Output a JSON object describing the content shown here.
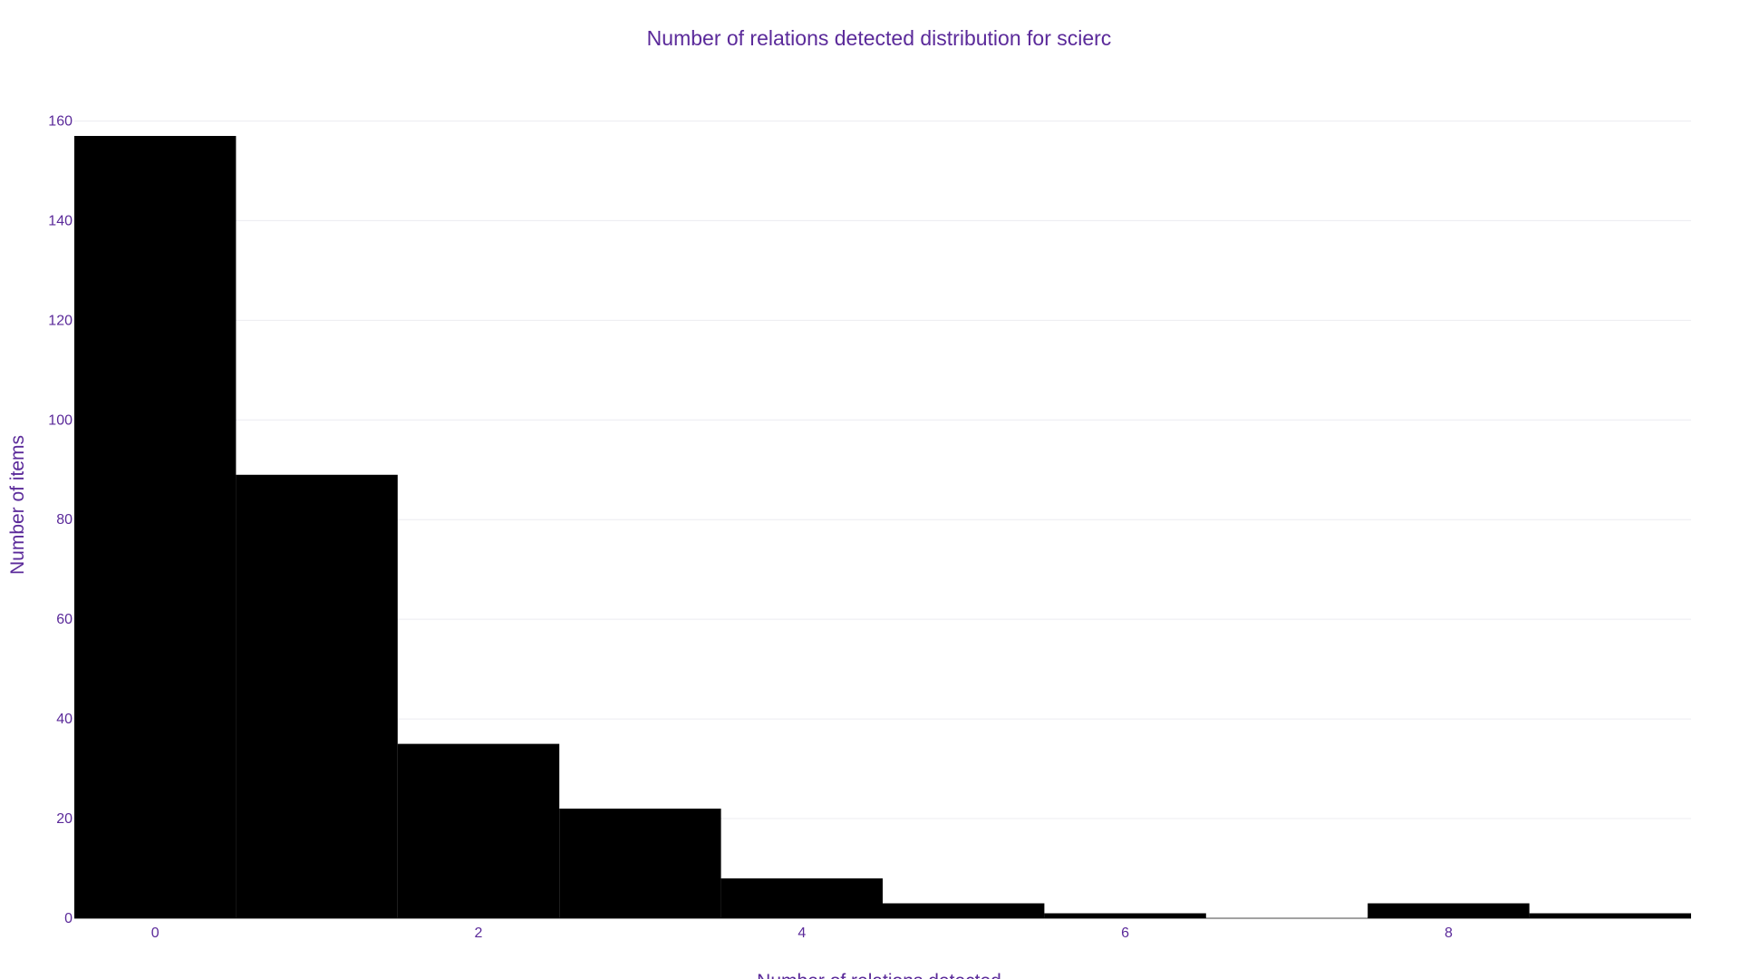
{
  "colors": {
    "text": "#5b2a9a",
    "bar": "#000000",
    "grid": "#ececf1",
    "background": "#ffffff"
  },
  "chart_data": {
    "type": "bar",
    "title": "Number of relations detected distribution for scierc",
    "xlabel": "Number of relations detected",
    "ylabel": "Number of items",
    "x": [
      0,
      1,
      2,
      3,
      4,
      5,
      6,
      7,
      8,
      9
    ],
    "values": [
      157,
      89,
      35,
      22,
      8,
      3,
      1,
      0,
      3,
      1
    ],
    "bin_width": 1,
    "xlim": [
      -0.5,
      9.5
    ],
    "ylim": [
      0,
      165
    ],
    "x_ticks": [
      "0",
      "2",
      "4",
      "6",
      "8"
    ],
    "y_ticks": [
      "0",
      "20",
      "40",
      "60",
      "80",
      "100",
      "120",
      "140",
      "160"
    ],
    "grid": true,
    "legend": "none"
  }
}
